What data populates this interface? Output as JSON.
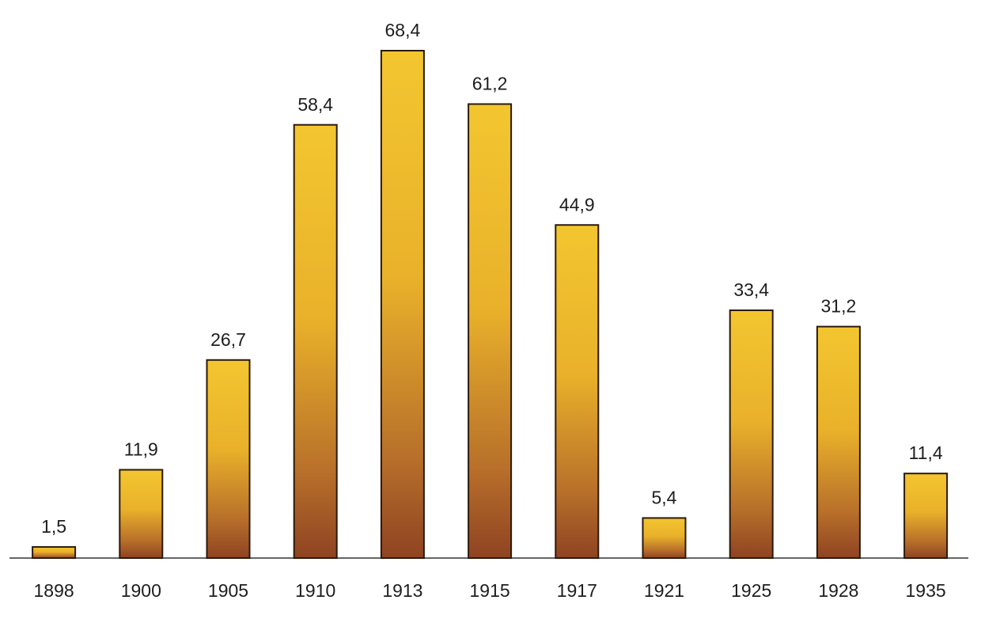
{
  "chart_data": {
    "type": "bar",
    "categories": [
      "1898",
      "1900",
      "1905",
      "1910",
      "1913",
      "1915",
      "1917",
      "1921",
      "1925",
      "1928",
      "1935"
    ],
    "values": [
      1.5,
      11.9,
      26.7,
      58.4,
      68.4,
      61.2,
      44.9,
      5.4,
      33.4,
      31.2,
      11.4
    ],
    "value_labels": [
      "1,5",
      "11,9",
      "26,7",
      "58,4",
      "68,4",
      "61,2",
      "44,9",
      "5,4",
      "33,4",
      "31,2",
      "11,4"
    ]
  }
}
